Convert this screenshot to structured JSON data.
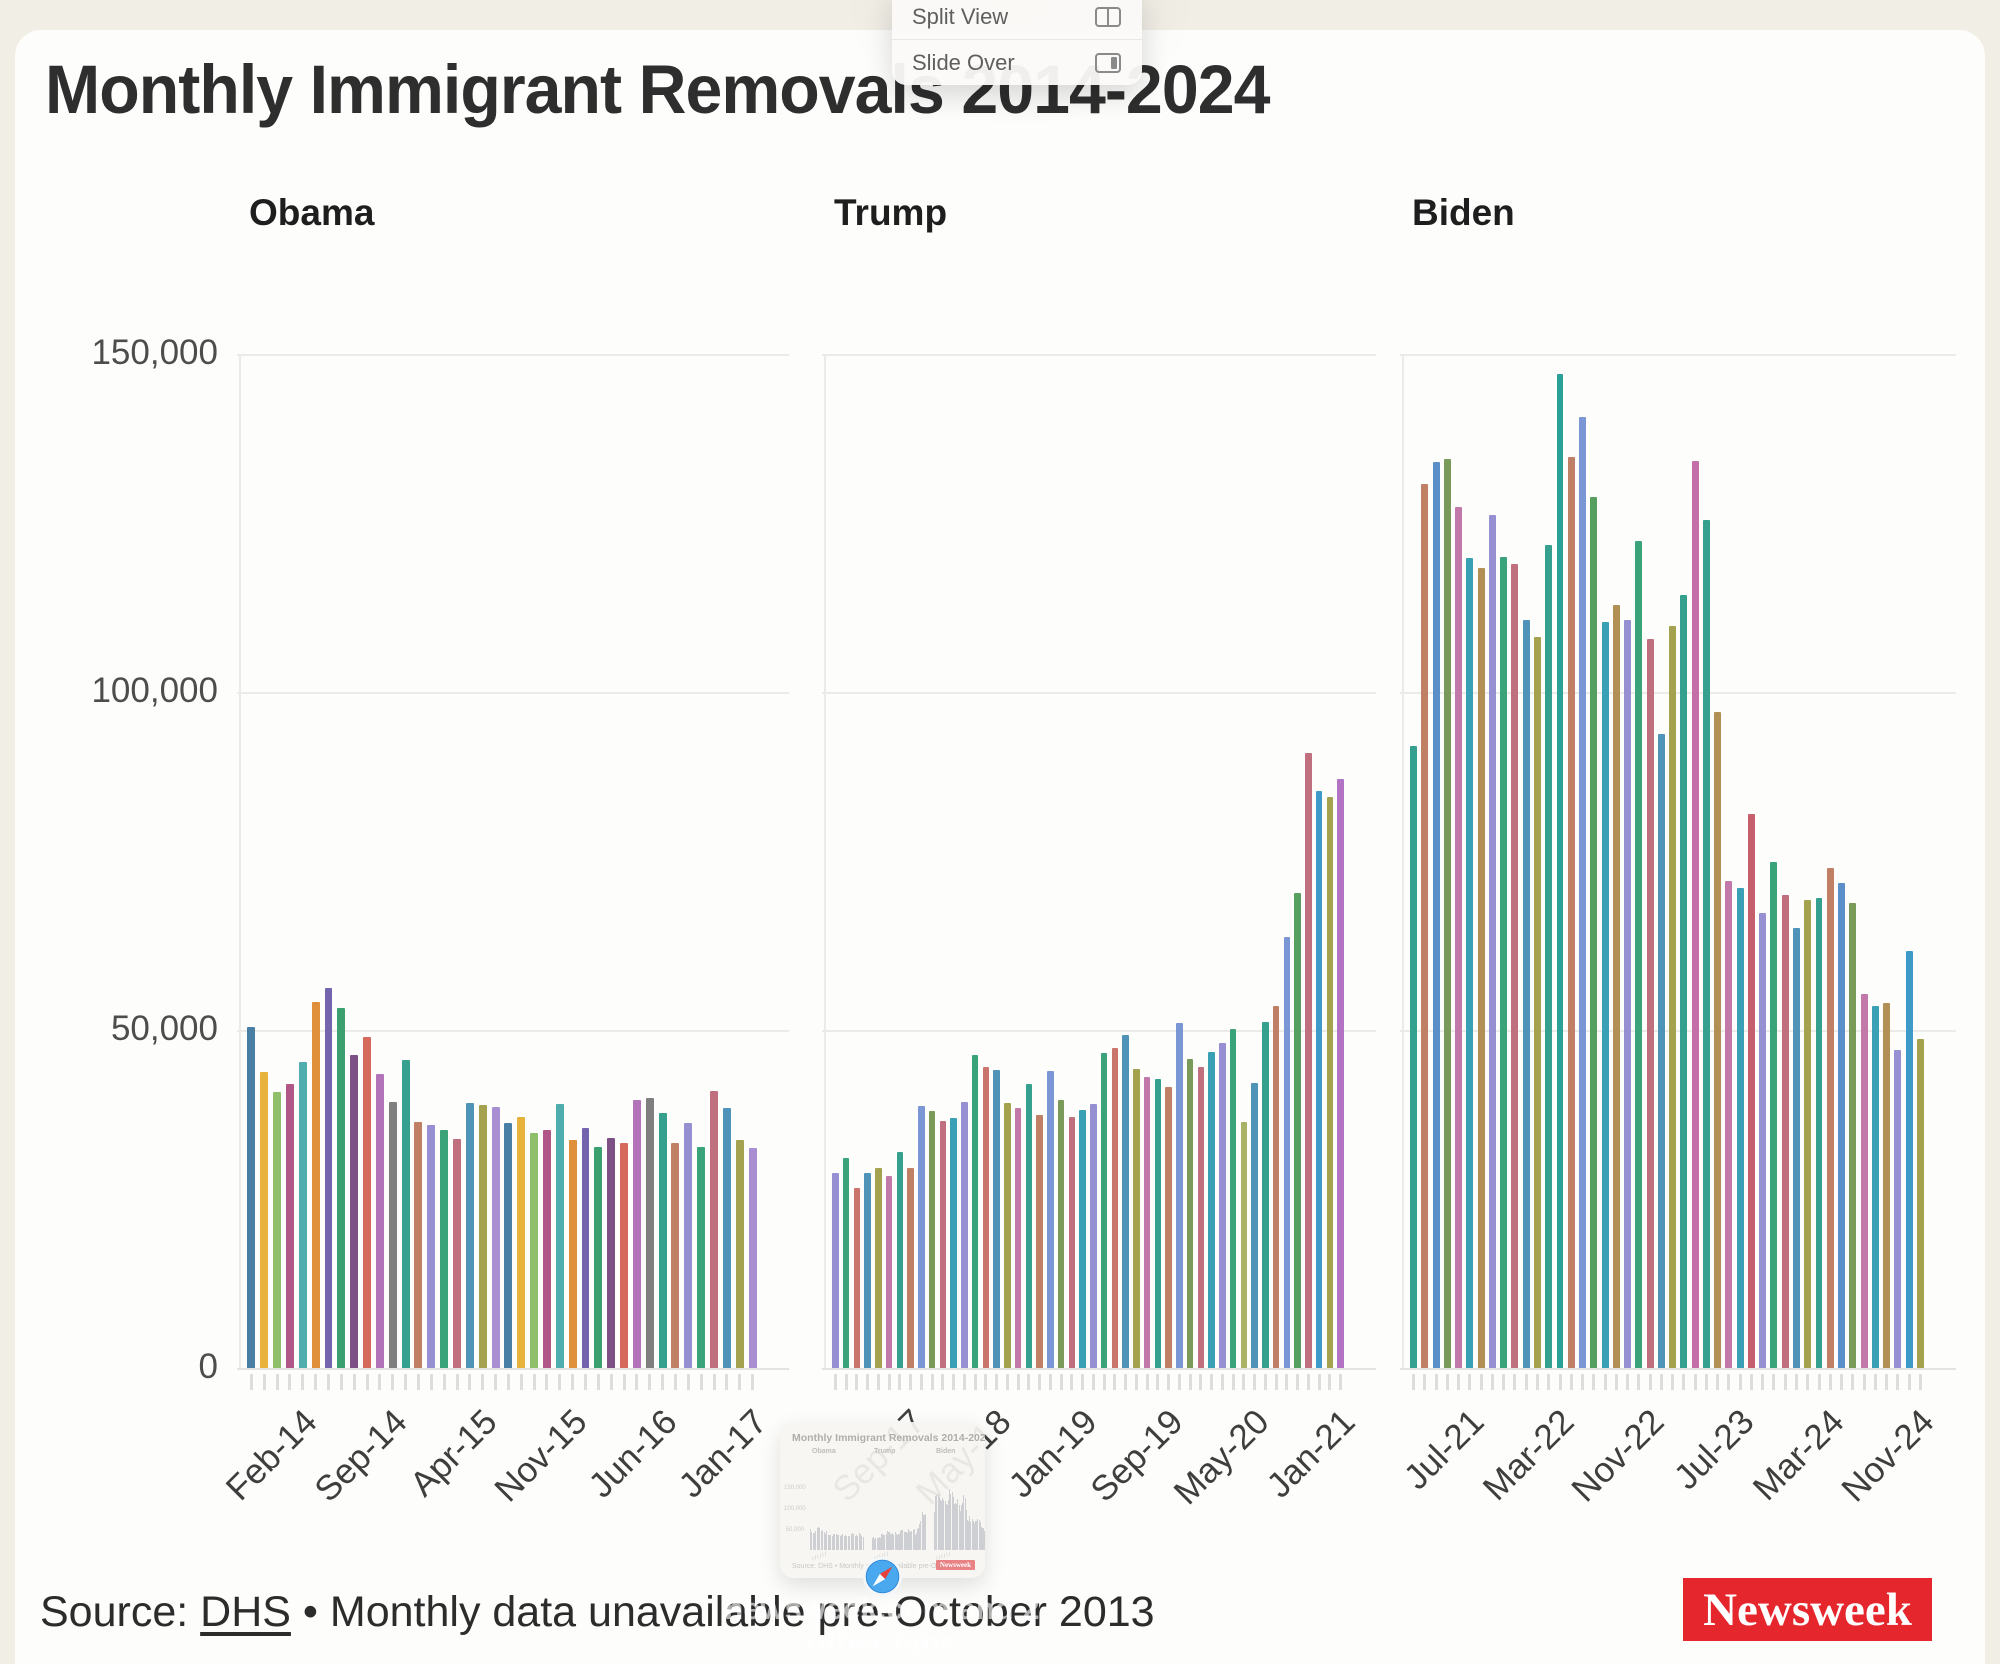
{
  "page": {
    "title": "Monthly Immigrant Removals 2014-2024",
    "source_prefix": "Source: ",
    "source_link": "DHS",
    "source_suffix": " • Monthly data unavailable pre-October 2013",
    "brand": "Newsweek"
  },
  "context_menu": {
    "items": [
      {
        "label": "Split View",
        "icon": "split-view-icon"
      },
      {
        "label": "Slide Over",
        "icon": "slide-over-icon"
      }
    ]
  },
  "tab_preview": {
    "caption_line1": "newsweek.com and 2",
    "caption_line2": "other tabs"
  },
  "chart_data": {
    "type": "bar",
    "title": "Monthly Immigrant Removals 2014-2024",
    "xlabel": "",
    "ylabel": "",
    "ylim": [
      0,
      155000
    ],
    "grid": true,
    "yticks": [
      {
        "value": 150000,
        "label": "150,000"
      },
      {
        "value": 100000,
        "label": "100,000"
      },
      {
        "value": 50000,
        "label": "50,000"
      },
      {
        "value": 0,
        "label": "0"
      }
    ],
    "panels": [
      {
        "label": "Obama",
        "first_month": "Oct-13",
        "tick_indices": [
          4,
          11,
          18,
          25,
          32,
          39
        ],
        "tick_labels": [
          "Feb-14",
          "Sep-14",
          "Apr-15",
          "Nov-15",
          "Jun-16",
          "Jan-17"
        ],
        "values": [
          50500,
          43800,
          40800,
          42000,
          45200,
          54200,
          56200,
          53300,
          46300,
          48900,
          43500,
          39400,
          45600,
          36400,
          36000,
          35200,
          33900,
          39200,
          38900,
          38600,
          36300,
          37200,
          34800,
          35200,
          39100,
          33700,
          35500,
          32700,
          34000,
          33300,
          39700,
          40000,
          37700,
          33300,
          36200,
          32700,
          41000,
          38400,
          33800,
          32600
        ],
        "palette": [
          "#4a7fa5",
          "#e8b33a",
          "#8fbf6a",
          "#b05788",
          "#4fadad",
          "#e08f3a",
          "#7463ad",
          "#3aa06f",
          "#7d5185",
          "#d4695c",
          "#b273b8",
          "#7f7f7f",
          "#35a08d",
          "#c08065",
          "#968fd2",
          "#3ba379",
          "#c06f7e",
          "#4f93b8",
          "#a4a24f",
          "#a98fd2"
        ],
        "color_overrides": {}
      },
      {
        "label": "Trump",
        "first_month": "Feb-17",
        "tick_indices": [
          7,
          15,
          23,
          31,
          39,
          47
        ],
        "tick_labels": [
          "Sep-17",
          "May-18",
          "Jan-19",
          "Sep-19",
          "May-20",
          "Jan-21"
        ],
        "values": [
          28900,
          31100,
          26700,
          28900,
          29600,
          28400,
          32000,
          29600,
          38800,
          38000,
          36500,
          37000,
          39300,
          46300,
          44600,
          44100,
          39200,
          38400,
          42000,
          37400,
          44000,
          39600,
          37200,
          38200,
          39000,
          46600,
          47400,
          49300,
          44300,
          43100,
          42700,
          41600,
          51000,
          45700,
          44500,
          46700,
          48100,
          50100,
          36400,
          42100,
          51200,
          53600,
          63800,
          70300,
          91000,
          85300,
          84500,
          87200
        ],
        "palette": [
          "#968fd2",
          "#3ba379",
          "#c9756b",
          "#4f93b8",
          "#a4a24f",
          "#c278a8",
          "#35a08d",
          "#c08065",
          "#7b96d4",
          "#7a9a5a",
          "#c06f7e",
          "#39a0b5"
        ],
        "color_overrides": {
          "38": "#aab266",
          "40": "#35a08d",
          "41": "#c08065",
          "42": "#7b96d4",
          "43": "#55a060",
          "44": "#c06f7e",
          "45": "#3f9ac9",
          "46": "#a4a24f",
          "47": "#b273c4"
        }
      },
      {
        "label": "Biden",
        "first_month": "Feb-21",
        "tick_indices": [
          5,
          13,
          21,
          29,
          37,
          45
        ],
        "tick_labels": [
          "Jul-21",
          "Mar-22",
          "Nov-22",
          "Jul-23",
          "Mar-24",
          "Nov-24"
        ],
        "values": [
          92000,
          130800,
          134000,
          134500,
          127300,
          119800,
          118300,
          126200,
          120000,
          119000,
          110600,
          108200,
          121800,
          147000,
          134700,
          140700,
          128900,
          110300,
          112900,
          110600,
          122400,
          107800,
          93800,
          109700,
          114300,
          134100,
          125400,
          97000,
          72100,
          71000,
          82000,
          67300,
          74800,
          69900,
          65100,
          69200,
          69500,
          74000,
          71700,
          68800,
          55300,
          53600,
          54000,
          47000,
          61700,
          48600
        ],
        "palette": [
          "#35a08d",
          "#c08065",
          "#5b8fc9",
          "#7a9a5a",
          "#c278a8",
          "#39a0b5",
          "#b28f55",
          "#968fd2",
          "#3ba379",
          "#c06f7e",
          "#4f93b8",
          "#a4a24f"
        ],
        "color_overrides": {
          "13": "#2aa098",
          "14": "#c08065",
          "15": "#7b96d4",
          "16": "#55a060",
          "25": "#c46fa8",
          "26": "#35a08d",
          "27": "#b28f55",
          "30": "#c55f6e",
          "44": "#3f9ac9",
          "45": "#a4a24f"
        }
      }
    ]
  }
}
